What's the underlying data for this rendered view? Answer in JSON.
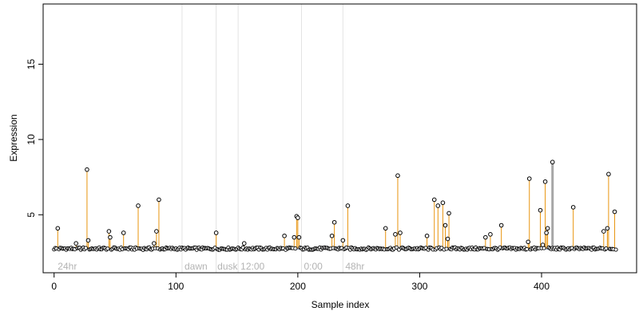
{
  "chart_data": {
    "type": "scatter",
    "xlabel": "Sample index",
    "ylabel": "Expression",
    "xlim": [
      -9,
      478
    ],
    "ylim": [
      1.15,
      19.0
    ],
    "x_ticks": [
      0,
      100,
      200,
      300,
      400
    ],
    "y_ticks": [
      5,
      10,
      15
    ],
    "baseline": 2.75,
    "grid": false,
    "colors": {
      "axis": "#000000",
      "points": "#000000",
      "stems": "#e8940e",
      "highlight_stem": "#a6a6a6",
      "baseline": "#8fa3cc",
      "separators": "#e3e3e3",
      "region_labels": "#b3b3b3"
    },
    "separators": [
      105,
      133,
      151,
      203,
      237
    ],
    "region_labels": [
      {
        "text": "24hr",
        "x": 3
      },
      {
        "text": "dawn",
        "x": 107
      },
      {
        "text": "dusk",
        "x": 134
      },
      {
        "text": "12:00",
        "x": 153
      },
      {
        "text": "0:00",
        "x": 205
      },
      {
        "text": "48hr",
        "x": 239
      }
    ],
    "highlight": {
      "x": 409,
      "y": 8.5
    },
    "peaks": [
      {
        "x": 3,
        "y": 4.1
      },
      {
        "x": 18,
        "y": 3.1
      },
      {
        "x": 27,
        "y": 8.0
      },
      {
        "x": 28,
        "y": 3.3
      },
      {
        "x": 45,
        "y": 3.9
      },
      {
        "x": 46,
        "y": 3.5
      },
      {
        "x": 57,
        "y": 3.8
      },
      {
        "x": 69,
        "y": 5.6
      },
      {
        "x": 82,
        "y": 3.1
      },
      {
        "x": 84,
        "y": 3.9
      },
      {
        "x": 86,
        "y": 6.0
      },
      {
        "x": 133,
        "y": 3.8
      },
      {
        "x": 156,
        "y": 3.1
      },
      {
        "x": 189,
        "y": 3.6
      },
      {
        "x": 197,
        "y": 3.5
      },
      {
        "x": 199,
        "y": 4.9
      },
      {
        "x": 200,
        "y": 4.8
      },
      {
        "x": 201,
        "y": 3.5
      },
      {
        "x": 228,
        "y": 3.6
      },
      {
        "x": 230,
        "y": 4.5
      },
      {
        "x": 237,
        "y": 3.3
      },
      {
        "x": 241,
        "y": 5.6
      },
      {
        "x": 272,
        "y": 4.1
      },
      {
        "x": 280,
        "y": 3.7
      },
      {
        "x": 282,
        "y": 7.6
      },
      {
        "x": 284,
        "y": 3.8
      },
      {
        "x": 306,
        "y": 3.6
      },
      {
        "x": 312,
        "y": 6.0
      },
      {
        "x": 315,
        "y": 5.6
      },
      {
        "x": 319,
        "y": 5.8
      },
      {
        "x": 321,
        "y": 4.3
      },
      {
        "x": 323,
        "y": 3.4
      },
      {
        "x": 324,
        "y": 5.1
      },
      {
        "x": 354,
        "y": 3.5
      },
      {
        "x": 358,
        "y": 3.7
      },
      {
        "x": 367,
        "y": 4.3
      },
      {
        "x": 389,
        "y": 3.2
      },
      {
        "x": 390,
        "y": 7.4
      },
      {
        "x": 399,
        "y": 5.3
      },
      {
        "x": 401,
        "y": 3.0
      },
      {
        "x": 403,
        "y": 7.2
      },
      {
        "x": 404,
        "y": 3.8
      },
      {
        "x": 405,
        "y": 4.1
      },
      {
        "x": 426,
        "y": 5.5
      },
      {
        "x": 451,
        "y": 3.9
      },
      {
        "x": 454,
        "y": 4.1
      },
      {
        "x": 455,
        "y": 7.7
      },
      {
        "x": 460,
        "y": 5.2
      }
    ]
  }
}
